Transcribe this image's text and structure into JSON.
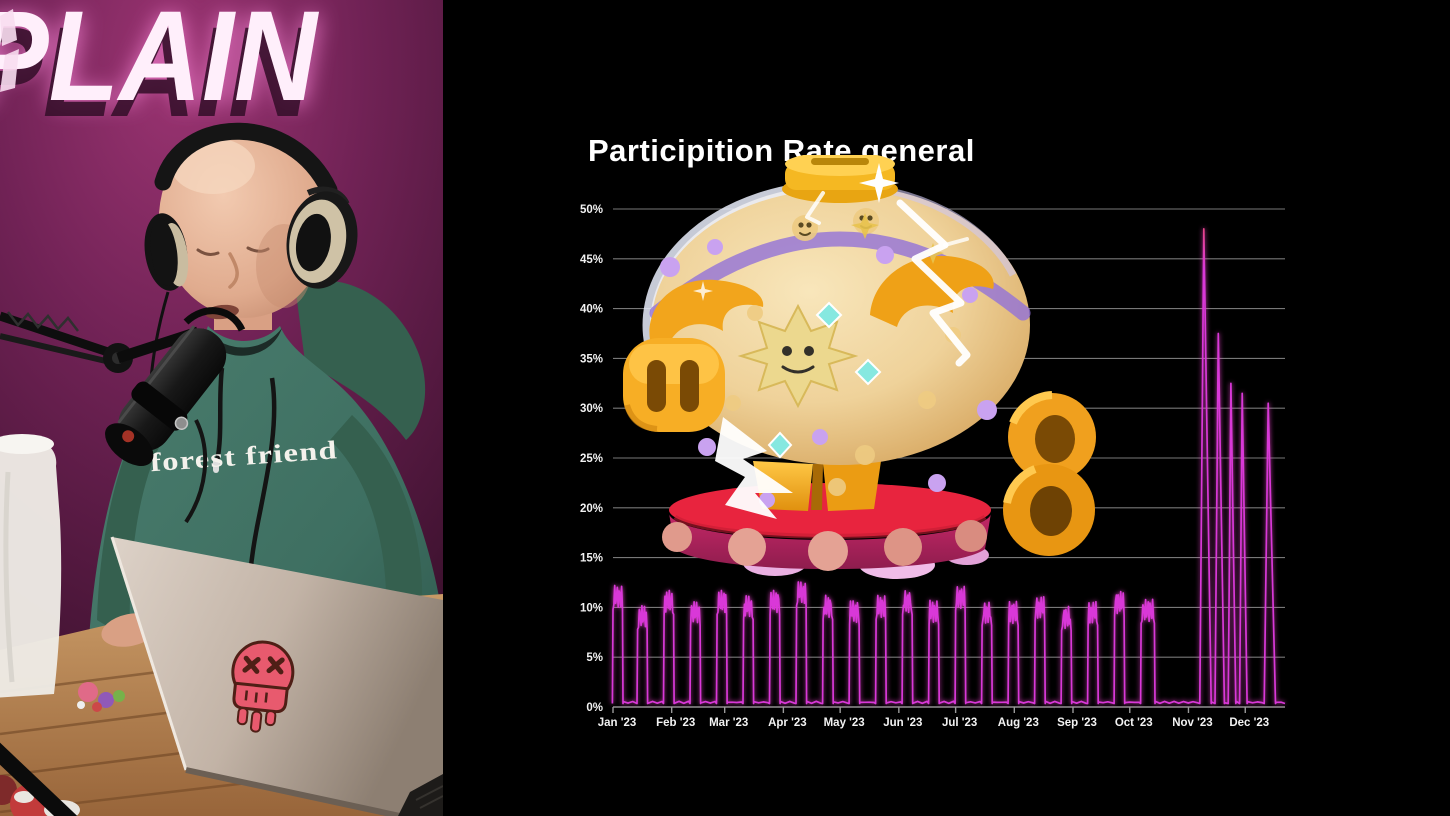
{
  "video_panel": {
    "neon_sign_text": "PLAIN",
    "hoodie_text": "forest friend",
    "colors": {
      "wall": "#702255",
      "sign_glow": "#ff80da",
      "hoodie": "#3e6f61",
      "desk": "#b5854f",
      "laptop": "#cfc3b8",
      "sticker": "#e85a6e"
    }
  },
  "chart_data": {
    "type": "line",
    "title": "Participition Rate general",
    "xlabel": "",
    "ylabel": "",
    "ylim": [
      0,
      50
    ],
    "x_domain_days": 355,
    "baseline": 0.35,
    "grid": true,
    "legend": "none",
    "line_color": "#d938d8",
    "spike_tip_color": "#ef4a5e",
    "grid_color": "#9a9a9a",
    "y_tick_labels": [
      "0%",
      "5%",
      "10%",
      "15%",
      "20%",
      "25%",
      "30%",
      "35%",
      "40%",
      "45%",
      "50%"
    ],
    "x_tick_labels": [
      "Jan '23",
      "Feb '23",
      "Mar '23",
      "Apr '23",
      "May '23",
      "Jun '23",
      "Jul '23",
      "Aug '23",
      "Sep '23",
      "Oct '23",
      "Nov '23",
      "Dec '23"
    ],
    "month_start_days": [
      0,
      31,
      59,
      90,
      120,
      151,
      181,
      212,
      243,
      273,
      304,
      334
    ],
    "events": [
      {
        "start": 1,
        "days": 5,
        "peak": 12.2,
        "shape": "plateau"
      },
      {
        "start": 14,
        "days": 5,
        "peak": 10.2,
        "shape": "plateau"
      },
      {
        "start": 28,
        "days": 5,
        "peak": 11.7,
        "shape": "plateau"
      },
      {
        "start": 42,
        "days": 5,
        "peak": 10.6,
        "shape": "plateau"
      },
      {
        "start": 56,
        "days": 5,
        "peak": 11.7,
        "shape": "plateau"
      },
      {
        "start": 70,
        "days": 5,
        "peak": 11.2,
        "shape": "plateau"
      },
      {
        "start": 84,
        "days": 5,
        "peak": 11.7,
        "shape": "plateau"
      },
      {
        "start": 98,
        "days": 5,
        "peak": 12.6,
        "shape": "plateau"
      },
      {
        "start": 112,
        "days": 5,
        "peak": 11.2,
        "shape": "plateau"
      },
      {
        "start": 126,
        "days": 5,
        "peak": 10.7,
        "shape": "plateau"
      },
      {
        "start": 140,
        "days": 5,
        "peak": 11.2,
        "shape": "plateau"
      },
      {
        "start": 154,
        "days": 5,
        "peak": 11.7,
        "shape": "plateau"
      },
      {
        "start": 168,
        "days": 5,
        "peak": 10.7,
        "shape": "plateau"
      },
      {
        "start": 182,
        "days": 5,
        "peak": 12.1,
        "shape": "plateau"
      },
      {
        "start": 196,
        "days": 5,
        "peak": 10.6,
        "shape": "plateau"
      },
      {
        "start": 210,
        "days": 5,
        "peak": 10.6,
        "shape": "plateau"
      },
      {
        "start": 224,
        "days": 5,
        "peak": 11.1,
        "shape": "plateau"
      },
      {
        "start": 238,
        "days": 5,
        "peak": 10.1,
        "shape": "plateau"
      },
      {
        "start": 252,
        "days": 5,
        "peak": 10.6,
        "shape": "plateau"
      },
      {
        "start": 266,
        "days": 5,
        "peak": 11.6,
        "shape": "plateau"
      },
      {
        "start": 280,
        "days": 7,
        "peak": 10.8,
        "shape": "plateau"
      },
      {
        "start": 311,
        "days": 6,
        "peak": 48.0,
        "shape": "spike"
      },
      {
        "start": 319,
        "days": 5,
        "peak": 37.5,
        "shape": "spike"
      },
      {
        "start": 326,
        "days": 4,
        "peak": 32.5,
        "shape": "spike"
      },
      {
        "start": 332,
        "days": 4,
        "peak": 31.5,
        "shape": "spike"
      },
      {
        "start": 345,
        "days": 6,
        "peak": 30.5,
        "shape": "spike"
      }
    ]
  },
  "overlay": {
    "illustration": "cracked-gold-piggy-bank-on-pedestal",
    "colors": {
      "gold": "#f2a81f",
      "body": "#eed3a0",
      "pedestal_top": "#e8243e",
      "pedestal_side": "#b32159"
    }
  }
}
